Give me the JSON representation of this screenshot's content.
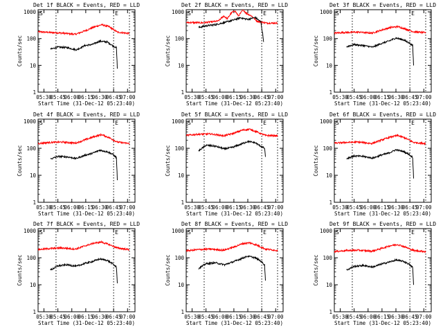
{
  "figure": {
    "ylabel": "Counts/sec",
    "xlabel": "Start Time (31-Dec-12 05:23:40)",
    "y_tick_labels": [
      "1",
      "10",
      "100",
      "1000"
    ],
    "x_tick_labels": [
      "05:30",
      "05:45",
      "06:00",
      "06:15",
      "06:30",
      "06:45",
      "07:00"
    ],
    "marker_start": "S",
    "marker_end": "E",
    "colors": {
      "events": "#000000",
      "lld": "#ff0000",
      "axes": "#000000",
      "background": "#ffffff"
    }
  },
  "chart_data": [
    {
      "type": "line",
      "title": "Det 1f BLACK = Events, RED = LLD",
      "xlabel": "Start Time (31-Dec-12 05:23:40)",
      "ylabel": "Counts/sec",
      "ylim": [
        1,
        1200
      ],
      "yscale": "log",
      "xlim": [
        "05:23:40",
        "07:08:00"
      ],
      "markers": {
        "S": "05:43:00",
        "E": "06:45:00"
      },
      "series": [
        {
          "name": "LLD",
          "color": "#ff0000",
          "times": [
            "05:23:40",
            "05:36",
            "05:50",
            "06:04",
            "06:15",
            "06:24",
            "06:32",
            "06:40",
            "06:49",
            "07:02"
          ],
          "values": [
            180,
            170,
            160,
            145,
            200,
            270,
            330,
            280,
            175,
            155
          ]
        },
        {
          "name": "Events",
          "color": "#000000",
          "times": [
            "05:37",
            "05:45",
            "05:55",
            "06:05",
            "06:14",
            "06:22",
            "06:30",
            "06:38",
            "06:44",
            "06:48",
            "06:49"
          ],
          "values": [
            40,
            48,
            46,
            38,
            55,
            60,
            80,
            75,
            55,
            45,
            8
          ]
        }
      ]
    },
    {
      "type": "line",
      "title": "Det 2f BLACK = Events, RED = LLD",
      "xlabel": "Start Time (31-Dec-12 05:23:40)",
      "ylabel": "Counts/sec",
      "ylim": [
        1,
        1200
      ],
      "yscale": "log",
      "xlim": [
        "05:23:40",
        "07:08:00"
      ],
      "markers": {
        "S": "05:43:00",
        "E": "06:45:00"
      },
      "series": [
        {
          "name": "LLD",
          "color": "#ff0000",
          "times": [
            "05:23:40",
            "05:42",
            "05:50",
            "05:58",
            "06:04",
            "06:08",
            "06:12",
            "06:16",
            "06:20",
            "06:25",
            "06:28",
            "06:34",
            "06:40",
            "06:50",
            "07:02"
          ],
          "values": [
            400,
            390,
            420,
            450,
            700,
            550,
            900,
            1100,
            700,
            1200,
            900,
            700,
            450,
            380,
            380
          ]
        },
        {
          "name": "Events",
          "color": "#000000",
          "times": [
            "05:37",
            "05:45",
            "05:55",
            "06:05",
            "06:15",
            "06:22",
            "06:30",
            "06:38",
            "06:44",
            "06:46",
            "06:47"
          ],
          "values": [
            260,
            300,
            330,
            400,
            500,
            600,
            520,
            620,
            420,
            150,
            80
          ]
        }
      ]
    },
    {
      "type": "line",
      "title": "Det 3f BLACK = Events, RED = LLD",
      "xlabel": "Start Time (31-Dec-12 05:23:40)",
      "ylabel": "Counts/sec",
      "ylim": [
        1,
        1200
      ],
      "yscale": "log",
      "xlim": [
        "05:23:40",
        "07:08:00"
      ],
      "markers": {
        "S": "05:43:00",
        "E": "06:45:00"
      },
      "series": [
        {
          "name": "LLD",
          "color": "#ff0000",
          "times": [
            "05:23:40",
            "05:36",
            "05:50",
            "06:04",
            "06:15",
            "06:24",
            "06:32",
            "06:40",
            "06:49",
            "07:02"
          ],
          "values": [
            160,
            170,
            175,
            160,
            210,
            260,
            280,
            230,
            180,
            165
          ]
        },
        {
          "name": "Events",
          "color": "#000000",
          "times": [
            "05:37",
            "05:45",
            "05:55",
            "06:05",
            "06:14",
            "06:22",
            "06:30",
            "06:38",
            "06:44",
            "06:48",
            "06:49"
          ],
          "values": [
            50,
            60,
            55,
            48,
            65,
            80,
            105,
            90,
            70,
            55,
            10
          ]
        }
      ]
    },
    {
      "type": "line",
      "title": "Det 4f BLACK = Events, RED = LLD",
      "xlabel": "Start Time (31-Dec-12 05:23:40)",
      "ylabel": "Counts/sec",
      "ylim": [
        1,
        1200
      ],
      "yscale": "log",
      "xlim": [
        "05:23:40",
        "07:08:00"
      ],
      "markers": {
        "S": "05:43:00",
        "E": "06:45:00"
      },
      "series": [
        {
          "name": "LLD",
          "color": "#ff0000",
          "times": [
            "05:23:40",
            "05:36",
            "05:50",
            "06:04",
            "06:15",
            "06:24",
            "06:32",
            "06:40",
            "06:49",
            "07:02"
          ],
          "values": [
            150,
            165,
            170,
            155,
            210,
            270,
            320,
            250,
            170,
            150
          ]
        },
        {
          "name": "Events",
          "color": "#000000",
          "times": [
            "05:37",
            "05:45",
            "05:55",
            "06:05",
            "06:14",
            "06:22",
            "06:30",
            "06:38",
            "06:44",
            "06:48",
            "06:49"
          ],
          "values": [
            40,
            50,
            48,
            42,
            55,
            65,
            85,
            75,
            60,
            45,
            7
          ]
        }
      ]
    },
    {
      "type": "line",
      "title": "Det 5f BLACK = Events, RED = LLD",
      "xlabel": "Start Time (31-Dec-12 05:23:40)",
      "ylabel": "Counts/sec",
      "ylim": [
        1,
        1200
      ],
      "yscale": "log",
      "xlim": [
        "05:23:40",
        "07:08:00"
      ],
      "markers": {
        "S": "05:43:00",
        "E": "06:45:00"
      },
      "series": [
        {
          "name": "LLD",
          "color": "#ff0000",
          "times": [
            "05:23:40",
            "05:36",
            "05:50",
            "06:04",
            "06:15",
            "06:24",
            "06:32",
            "06:40",
            "06:49",
            "07:02"
          ],
          "values": [
            300,
            330,
            340,
            290,
            360,
            470,
            510,
            400,
            300,
            290
          ]
        },
        {
          "name": "Events",
          "color": "#000000",
          "times": [
            "05:37",
            "05:45",
            "05:55",
            "06:05",
            "06:14",
            "06:22",
            "06:30",
            "06:38",
            "06:44",
            "06:48",
            "06:49"
          ],
          "values": [
            80,
            130,
            120,
            95,
            110,
            140,
            180,
            160,
            120,
            100,
            50
          ]
        }
      ]
    },
    {
      "type": "line",
      "title": "Det 6f BLACK = Events, RED = LLD",
      "xlabel": "Start Time (31-Dec-12 05:23:40)",
      "ylabel": "Counts/sec",
      "ylim": [
        1,
        1200
      ],
      "yscale": "log",
      "xlim": [
        "05:23:40",
        "07:08:00"
      ],
      "markers": {
        "S": "05:43:00",
        "E": "06:45:00"
      },
      "series": [
        {
          "name": "LLD",
          "color": "#ff0000",
          "times": [
            "05:23:40",
            "05:36",
            "05:50",
            "06:04",
            "06:15",
            "06:24",
            "06:32",
            "06:40",
            "06:49",
            "07:02"
          ],
          "values": [
            155,
            165,
            170,
            150,
            205,
            260,
            300,
            240,
            165,
            150
          ]
        },
        {
          "name": "Events",
          "color": "#000000",
          "times": [
            "05:37",
            "05:45",
            "05:55",
            "06:05",
            "06:14",
            "06:22",
            "06:30",
            "06:38",
            "06:44",
            "06:48",
            "06:49"
          ],
          "values": [
            42,
            52,
            50,
            43,
            56,
            66,
            88,
            76,
            60,
            46,
            8
          ]
        }
      ]
    },
    {
      "type": "line",
      "title": "Det 7f BLACK = Events, RED = LLD",
      "xlabel": "Start Time (31-Dec-12 05:23:40)",
      "ylabel": "Counts/sec",
      "ylim": [
        1,
        1200
      ],
      "yscale": "log",
      "xlim": [
        "05:23:40",
        "07:08:00"
      ],
      "markers": {
        "S": "05:43:00",
        "E": "06:45:00"
      },
      "series": [
        {
          "name": "LLD",
          "color": "#ff0000",
          "times": [
            "05:23:40",
            "05:36",
            "05:50",
            "06:04",
            "06:15",
            "06:24",
            "06:32",
            "06:40",
            "06:49",
            "07:02"
          ],
          "values": [
            200,
            220,
            230,
            210,
            280,
            350,
            380,
            310,
            230,
            200
          ]
        },
        {
          "name": "Events",
          "color": "#000000",
          "times": [
            "05:37",
            "05:45",
            "05:55",
            "06:05",
            "06:14",
            "06:22",
            "06:30",
            "06:38",
            "06:44",
            "06:48",
            "06:49"
          ],
          "values": [
            35,
            50,
            55,
            48,
            62,
            72,
            90,
            80,
            60,
            45,
            12
          ]
        }
      ]
    },
    {
      "type": "line",
      "title": "Det 8f BLACK = Events, RED = LLD",
      "xlabel": "Start Time (31-Dec-12 05:23:40)",
      "ylabel": "Counts/sec",
      "ylim": [
        1,
        1200
      ],
      "yscale": "log",
      "xlim": [
        "05:23:40",
        "07:08:00"
      ],
      "markers": {
        "S": "05:43:00",
        "E": "06:45:00"
      },
      "series": [
        {
          "name": "LLD",
          "color": "#ff0000",
          "times": [
            "05:23:40",
            "05:36",
            "05:50",
            "06:04",
            "06:15",
            "06:24",
            "06:32",
            "06:40",
            "06:49",
            "07:02"
          ],
          "values": [
            180,
            200,
            210,
            190,
            250,
            330,
            360,
            290,
            210,
            185
          ]
        },
        {
          "name": "Events",
          "color": "#000000",
          "times": [
            "05:37",
            "05:45",
            "05:55",
            "06:05",
            "06:14",
            "06:22",
            "06:30",
            "06:38",
            "06:44",
            "06:48",
            "06:49"
          ],
          "values": [
            40,
            60,
            65,
            55,
            70,
            90,
            115,
            100,
            75,
            55,
            15
          ]
        }
      ]
    },
    {
      "type": "line",
      "title": "Det 9f BLACK = Events, RED = LLD",
      "xlabel": "Start Time (31-Dec-12 05:23:40)",
      "ylabel": "Counts/sec",
      "ylim": [
        1,
        1200
      ],
      "yscale": "log",
      "xlim": [
        "05:23:40",
        "07:08:00"
      ],
      "markers": {
        "S": "05:43:00",
        "E": "06:45:00"
      },
      "series": [
        {
          "name": "LLD",
          "color": "#ff0000",
          "times": [
            "05:23:40",
            "05:36",
            "05:50",
            "06:04",
            "06:15",
            "06:24",
            "06:32",
            "06:40",
            "06:49",
            "07:02"
          ],
          "values": [
            170,
            185,
            190,
            175,
            225,
            280,
            310,
            250,
            185,
            170
          ]
        },
        {
          "name": "Events",
          "color": "#000000",
          "times": [
            "05:37",
            "05:45",
            "05:55",
            "06:05",
            "06:14",
            "06:22",
            "06:30",
            "06:38",
            "06:44",
            "06:48",
            "06:49"
          ],
          "values": [
            35,
            48,
            52,
            45,
            58,
            68,
            82,
            74,
            58,
            44,
            10
          ]
        }
      ]
    }
  ]
}
